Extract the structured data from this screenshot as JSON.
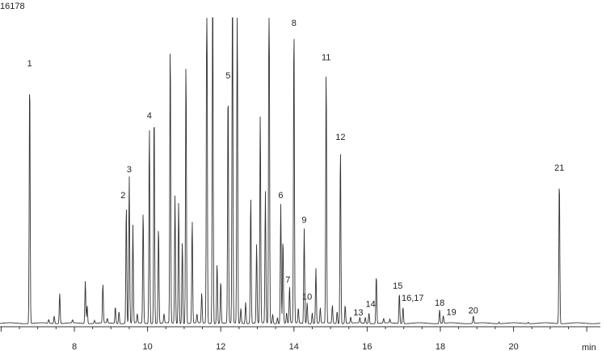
{
  "chart_data": {
    "type": "line",
    "y_top_label": "16178",
    "x_unit": "min",
    "xlim": [
      6.0,
      23.0
    ],
    "ylim": [
      0,
      100
    ],
    "x_ticks": [
      8,
      10,
      12,
      14,
      16,
      18,
      20
    ],
    "line_color": "#333333",
    "peaks": [
      {
        "t": 6.78,
        "h": 82.0,
        "label": "1"
      },
      {
        "t": 7.3,
        "h": 1.2
      },
      {
        "t": 7.45,
        "h": 2.5
      },
      {
        "t": 7.6,
        "h": 10.0
      },
      {
        "t": 7.95,
        "h": 1.0
      },
      {
        "t": 8.3,
        "h": 14.0
      },
      {
        "t": 8.35,
        "h": 6.0
      },
      {
        "t": 8.55,
        "h": 1.0
      },
      {
        "t": 8.78,
        "h": 13.0
      },
      {
        "t": 8.9,
        "h": 1.5
      },
      {
        "t": 9.12,
        "h": 5.5
      },
      {
        "t": 9.22,
        "h": 4.0
      },
      {
        "t": 9.42,
        "h": 39.0,
        "label": "2"
      },
      {
        "t": 9.5,
        "h": 48.0,
        "label": "3"
      },
      {
        "t": 9.6,
        "h": 32.0
      },
      {
        "t": 9.72,
        "h": 3.0
      },
      {
        "t": 9.88,
        "h": 37.0
      },
      {
        "t": 10.05,
        "h": 65.0,
        "label": "4"
      },
      {
        "t": 10.18,
        "h": 71.0
      },
      {
        "t": 10.3,
        "h": 32.0
      },
      {
        "t": 10.45,
        "h": 3.0
      },
      {
        "t": 10.62,
        "h": 93.0
      },
      {
        "t": 10.75,
        "h": 42.0
      },
      {
        "t": 10.85,
        "h": 40.0
      },
      {
        "t": 10.95,
        "h": 27.0
      },
      {
        "t": 11.05,
        "h": 87.0
      },
      {
        "t": 11.22,
        "h": 34.0
      },
      {
        "t": 11.35,
        "h": 3.0
      },
      {
        "t": 11.48,
        "h": 10.0
      },
      {
        "t": 11.62,
        "h": 130.0
      },
      {
        "t": 11.78,
        "h": 120.0
      },
      {
        "t": 11.9,
        "h": 20.0
      },
      {
        "t": 12.0,
        "h": 14.0
      },
      {
        "t": 12.2,
        "h": 78.0,
        "label": "5"
      },
      {
        "t": 12.32,
        "h": 125.0
      },
      {
        "t": 12.45,
        "h": 110.0
      },
      {
        "t": 12.55,
        "h": 5.0
      },
      {
        "t": 12.68,
        "h": 7.0
      },
      {
        "t": 12.82,
        "h": 42.0
      },
      {
        "t": 12.98,
        "h": 26.0
      },
      {
        "t": 13.08,
        "h": 69.0
      },
      {
        "t": 13.22,
        "h": 43.0
      },
      {
        "t": 13.32,
        "h": 130.0
      },
      {
        "t": 13.42,
        "h": 3.0
      },
      {
        "t": 13.55,
        "h": 2.0
      },
      {
        "t": 13.64,
        "h": 39.0,
        "label": "6"
      },
      {
        "t": 13.7,
        "h": 28.0
      },
      {
        "t": 13.8,
        "h": 3.5
      },
      {
        "t": 13.88,
        "h": 12.0,
        "label": "7"
      },
      {
        "t": 14.0,
        "h": 99.0,
        "label": "8"
      },
      {
        "t": 14.12,
        "h": 5.0
      },
      {
        "t": 14.28,
        "h": 31.0,
        "label": "9"
      },
      {
        "t": 14.36,
        "h": 7.0,
        "label": "10"
      },
      {
        "t": 14.5,
        "h": 3.5
      },
      {
        "t": 14.6,
        "h": 18.0
      },
      {
        "t": 14.72,
        "h": 5.0
      },
      {
        "t": 14.88,
        "h": 84.0,
        "label": "11"
      },
      {
        "t": 15.05,
        "h": 6.0
      },
      {
        "t": 15.18,
        "h": 4.0
      },
      {
        "t": 15.27,
        "h": 58.0,
        "label": "12"
      },
      {
        "t": 15.4,
        "h": 6.0
      },
      {
        "t": 15.55,
        "h": 2.0
      },
      {
        "t": 15.8,
        "h": 1.8,
        "label": "13"
      },
      {
        "t": 15.95,
        "h": 2.0
      },
      {
        "t": 16.05,
        "h": 3.5,
        "label": "14"
      },
      {
        "t": 16.25,
        "h": 16.0
      },
      {
        "t": 16.45,
        "h": 1.5
      },
      {
        "t": 16.62,
        "h": 1.2
      },
      {
        "t": 16.88,
        "h": 10.0,
        "label": "15"
      },
      {
        "t": 16.98,
        "h": 5.5,
        "label": "16,17"
      },
      {
        "t": 17.98,
        "h": 4.5,
        "label": "18"
      },
      {
        "t": 18.08,
        "h": 2.5,
        "label": "19"
      },
      {
        "t": 18.9,
        "h": 2.5,
        "label": "20"
      },
      {
        "t": 19.6,
        "h": 0.5
      },
      {
        "t": 20.4,
        "h": 0.5
      },
      {
        "t": 21.25,
        "h": 48.0,
        "label": "21"
      }
    ]
  }
}
